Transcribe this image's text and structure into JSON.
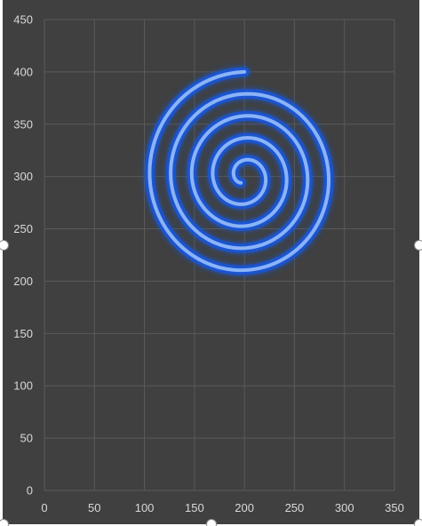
{
  "chart_data": {
    "type": "scatter",
    "title": "",
    "xlabel": "",
    "ylabel": "",
    "xlim": [
      0,
      350
    ],
    "ylim": [
      0,
      450
    ],
    "x_ticks": [
      "0",
      "50",
      "100",
      "150",
      "200",
      "250",
      "300",
      "350"
    ],
    "y_ticks": [
      "0",
      "50",
      "100",
      "150",
      "200",
      "250",
      "300",
      "350",
      "400",
      "450"
    ],
    "grid": true,
    "legend": "none",
    "series": [
      {
        "style": "spiral line, smoothed, with glow",
        "color": "#8ab4f8",
        "glow_color": "#1a56d6",
        "center": [
          200,
          300
        ],
        "start_radius": 100,
        "start_angle_deg": 90,
        "end_radius": 7,
        "end_angle_deg": 1680,
        "point_count": 600
      }
    ]
  },
  "colors": {
    "background": "#404040",
    "gridline": "#5a5a5a",
    "tick_text": "#d9d9d9",
    "line": "#8ab4f8",
    "glow": "#1a56d6"
  }
}
